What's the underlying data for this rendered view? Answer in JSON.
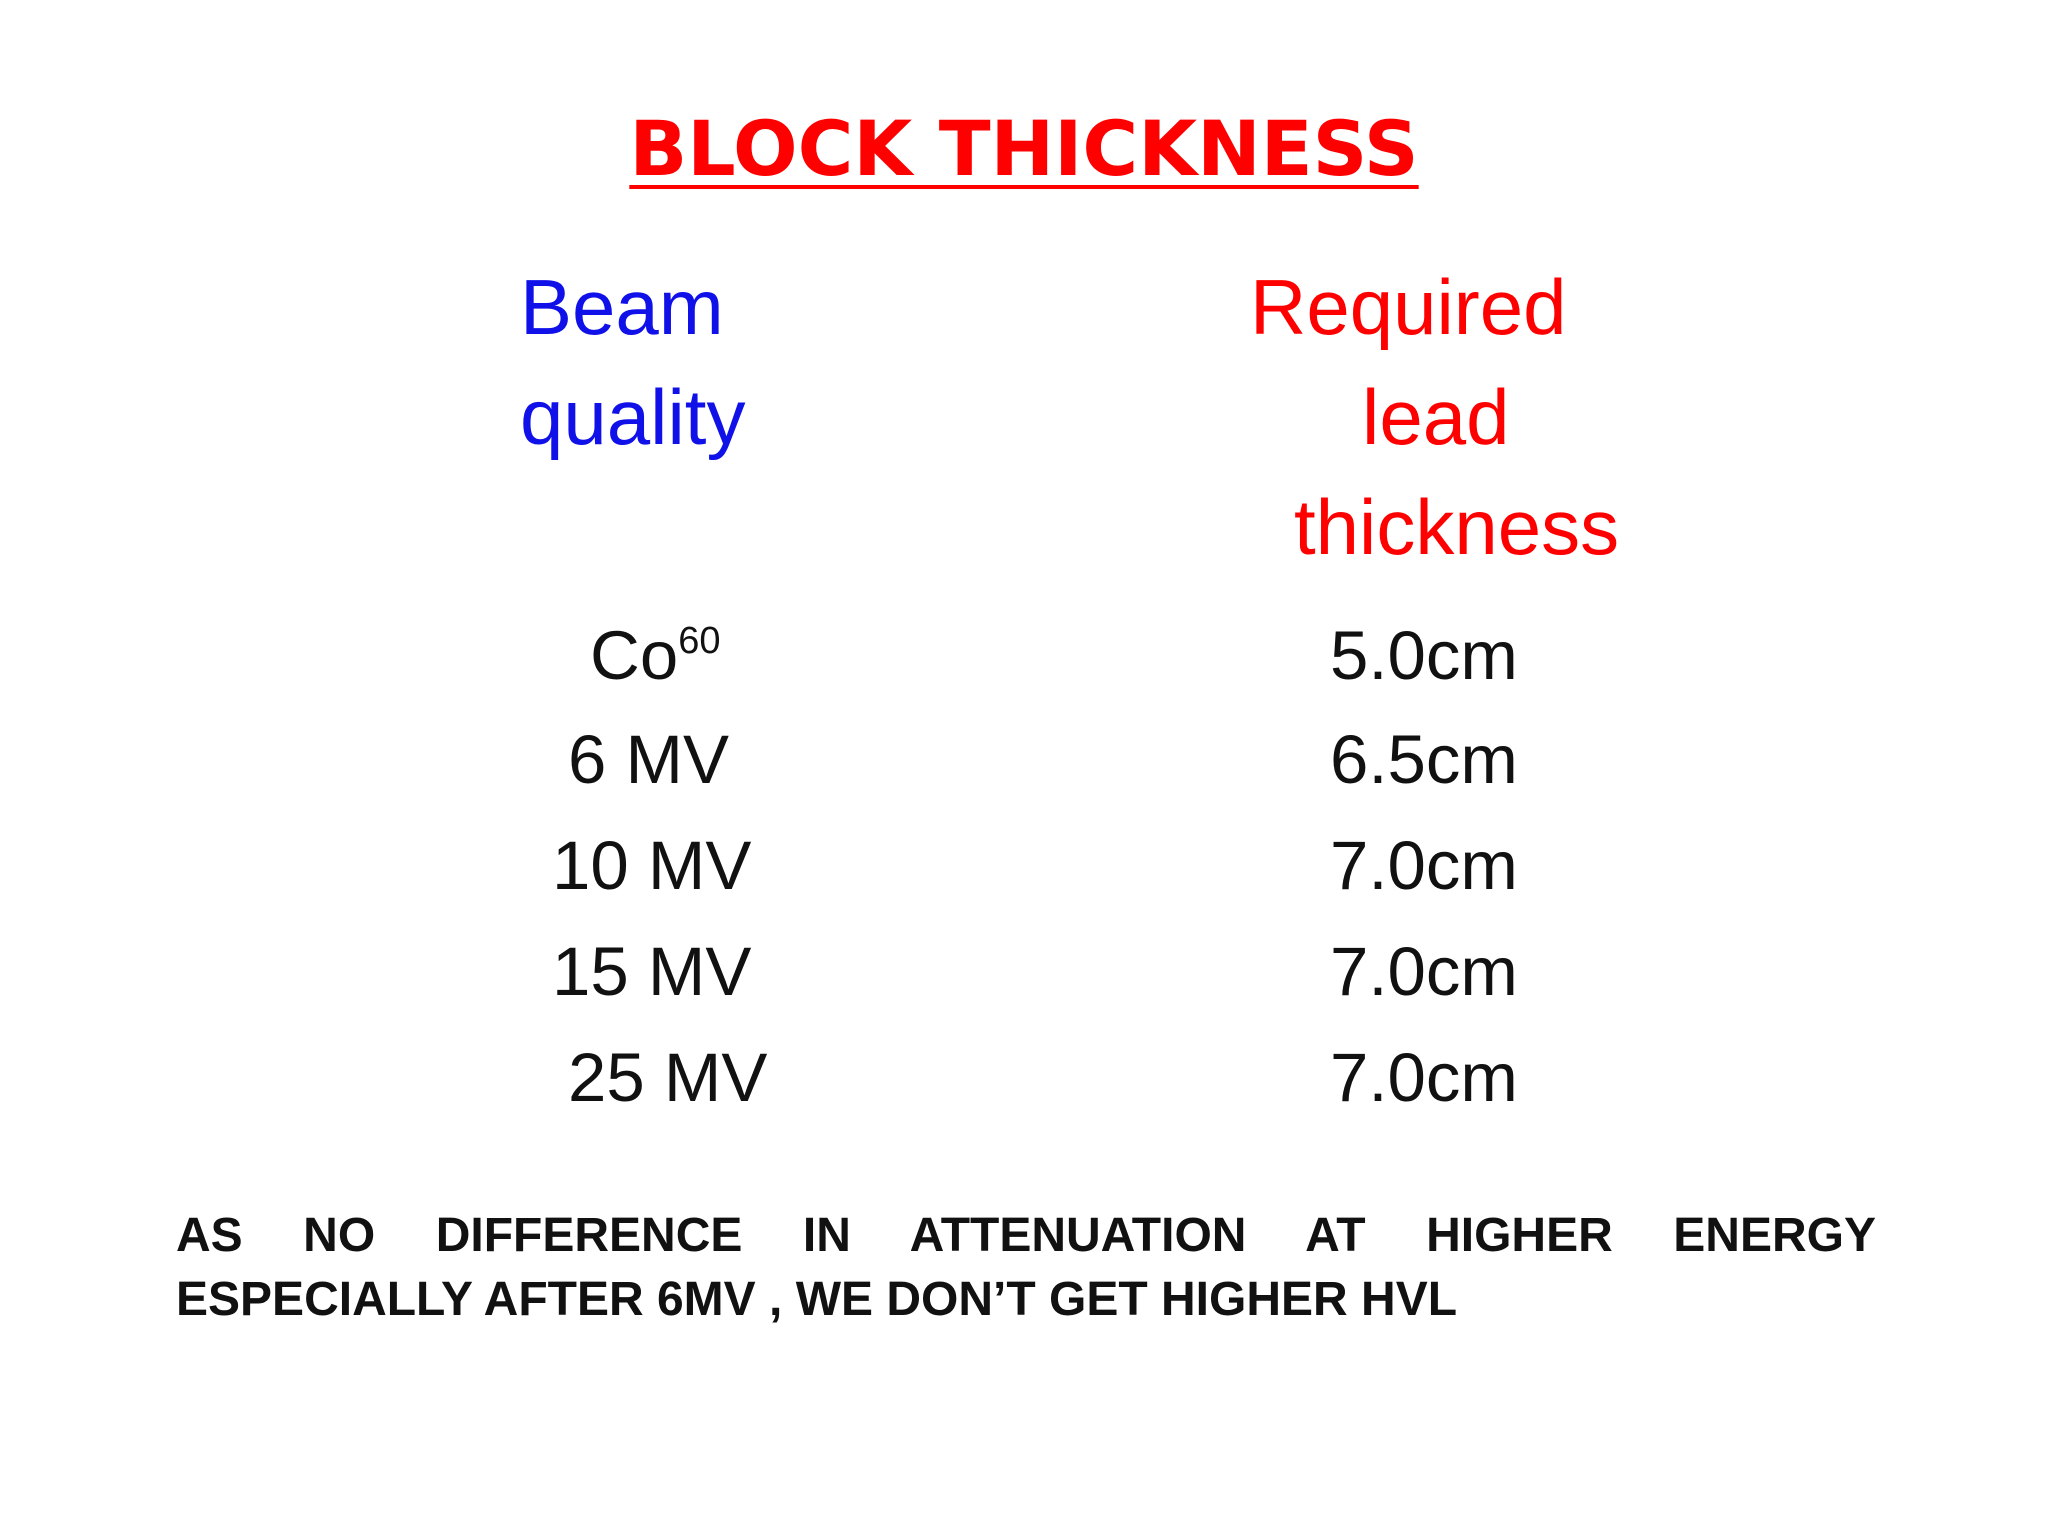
{
  "slide": {
    "title": "BLOCK THICKNESS",
    "header": {
      "left_line1": "Beam",
      "left_line2": "quality",
      "right_line1": "Required",
      "right_line2": "lead",
      "right_line3": "thickness"
    },
    "rows": [
      {
        "beam": "Co",
        "beam_sup": "60",
        "thickness": "5.0cm"
      },
      {
        "beam": "6 MV",
        "thickness": "6.5cm"
      },
      {
        "beam": "10 MV",
        "thickness": "7.0cm"
      },
      {
        "beam": "15 MV",
        "thickness": "7.0cm"
      },
      {
        "beam": "25 MV",
        "thickness": "7.0cm"
      }
    ],
    "note_line1": "AS NO DIFFERENCE IN ATTENUATION AT HIGHER ENERGY",
    "note_line2": "ESPECIALLY AFTER 6MV , WE DON’T GET HIGHER HVL",
    "colors": {
      "title": "#ff0000",
      "left_header": "#1010e8",
      "right_header": "#ff0000",
      "body_text": "#111111",
      "background": "#ffffff"
    }
  }
}
